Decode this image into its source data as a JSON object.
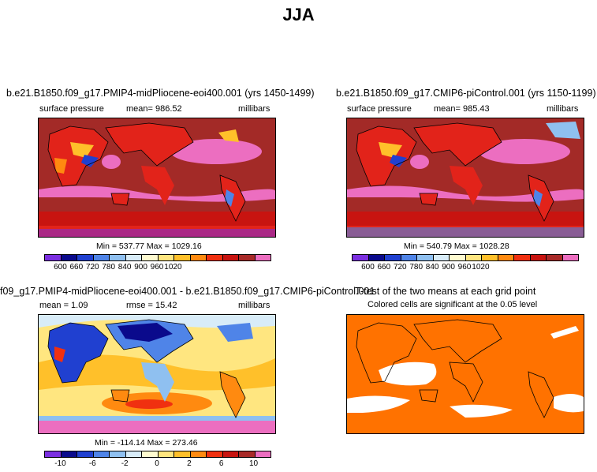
{
  "main_title": "JJA",
  "panels": {
    "p1": {
      "title": "b.e21.B1850.f09_g17.PMIP4-midPliocene-eoi400.001 (yrs 1450-1499)",
      "var": "surface pressure",
      "mean": "mean= 986.52",
      "units": "millibars",
      "minmax": "Min = 537.77 Max = 1029.16",
      "ticks": [
        "600",
        "660",
        "720",
        "780",
        "840",
        "900",
        "960",
        "1020"
      ]
    },
    "p2": {
      "title": "b.e21.B1850.f09_g17.CMIP6-piControl.001 (yrs 1150-1199)",
      "var": "surface pressure",
      "mean": "mean= 985.43",
      "units": "millibars",
      "minmax": "Min = 540.79 Max = 1028.28",
      "ticks": [
        "600",
        "660",
        "720",
        "780",
        "840",
        "900",
        "960",
        "1020"
      ]
    },
    "p3": {
      "title": "f09_g17.PMIP4-midPliocene-eoi400.001 - b.e21.B1850.f09_g17.CMIP6-piControl.001",
      "mean": "mean =   1.09",
      "rmse": "rmse =  15.42",
      "units": "millibars",
      "minmax": "Min = -114.14 Max = 273.46",
      "ticks": [
        "-10",
        "-6",
        "-2",
        "0",
        "2",
        "6",
        "10"
      ]
    },
    "p4": {
      "title": "T-test of the two means at each grid point",
      "note": "Colored cells are significant at the 0.05 level"
    }
  },
  "colors": {
    "abs_scale": [
      "#7b2fe0",
      "#0a0a8c",
      "#2040d0",
      "#4f84e8",
      "#8fc0f0",
      "#d8ecf8",
      "#fffbd0",
      "#ffe680",
      "#ffc02a",
      "#ff8a10",
      "#f03010",
      "#c81410",
      "#a82a28",
      "#ec6ec0"
    ],
    "diff_scale": [
      "#7b2fe0",
      "#0a0a8c",
      "#2040d0",
      "#4f84e8",
      "#8fc0f0",
      "#d8ecf8",
      "#fffbd0",
      "#ffe680",
      "#ffc02a",
      "#ff8a10",
      "#f03010",
      "#c81410",
      "#a82a28",
      "#ec6ec0"
    ],
    "ttest": "#ff7200",
    "ocean_abs": "#a32a27",
    "land_abs": "#e2231a"
  }
}
